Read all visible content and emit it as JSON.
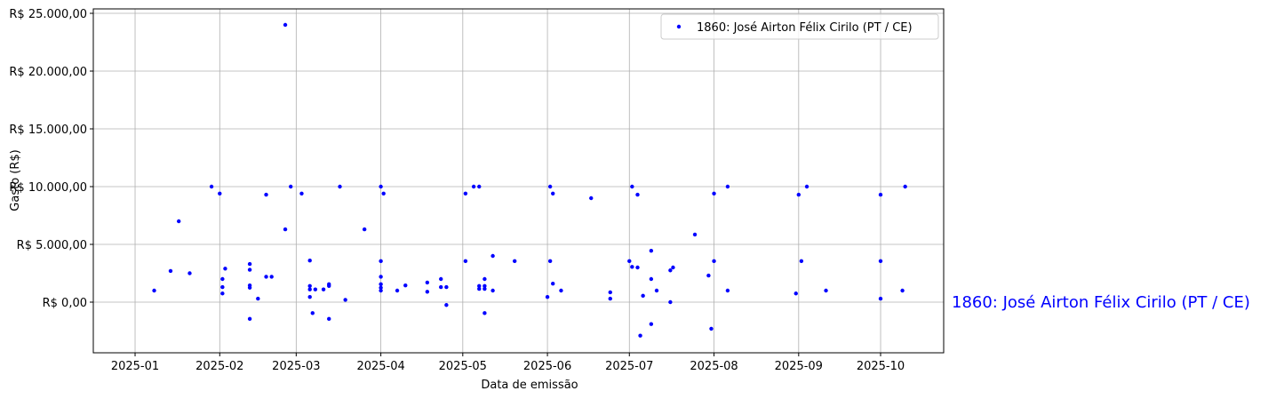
{
  "chart_data": {
    "type": "scatter",
    "x_label": "Data de emissão",
    "y_label": "Gasto (R$)",
    "annotation": "1860: José Airton Félix Cirilo (PT / CE)",
    "legend": "upper right",
    "grid": true,
    "xlim": [
      -15.3,
      296.1
    ],
    "xticks": [
      {
        "value": 0,
        "label": "2025-01"
      },
      {
        "value": 31,
        "label": "2025-02"
      },
      {
        "value": 59,
        "label": "2025-03"
      },
      {
        "value": 90,
        "label": "2025-04"
      },
      {
        "value": 120,
        "label": "2025-05"
      },
      {
        "value": 151,
        "label": "2025-06"
      },
      {
        "value": 181,
        "label": "2025-07"
      },
      {
        "value": 212,
        "label": "2025-08"
      },
      {
        "value": 243,
        "label": "2025-09"
      },
      {
        "value": 273,
        "label": "2025-10"
      }
    ],
    "ylim": [
      -4385,
      25385
    ],
    "yticks": [
      {
        "value": 0,
        "label": "R$ 0,00"
      },
      {
        "value": 5000,
        "label": "R$ 5.000,00"
      },
      {
        "value": 10000,
        "label": "R$ 10.000,00"
      },
      {
        "value": 15000,
        "label": "R$ 15.000,00"
      },
      {
        "value": 20000,
        "label": "R$ 20.000,00"
      },
      {
        "value": 25000,
        "label": "R$ 25.000,00"
      }
    ],
    "series": [
      {
        "name": "1860: José Airton Félix Cirilo (PT / CE)",
        "color": "#0000ff",
        "x": [
          7,
          13,
          16,
          20,
          28,
          31,
          32,
          32,
          32,
          33,
          42,
          42,
          42,
          42,
          42,
          45,
          48,
          48,
          50,
          55,
          55,
          57,
          61,
          64,
          64,
          64,
          64,
          65,
          66,
          69,
          71,
          71,
          71,
          75,
          77,
          84,
          90,
          90,
          90,
          90,
          90,
          90,
          91,
          96,
          99,
          107,
          107,
          112,
          112,
          114,
          114,
          121,
          121,
          124,
          126,
          126,
          126,
          128,
          128,
          128,
          128,
          131,
          131,
          139,
          151,
          152,
          152,
          153,
          153,
          156,
          167,
          174,
          174,
          181,
          182,
          182,
          184,
          184,
          185,
          186,
          189,
          189,
          189,
          191,
          196,
          196,
          197,
          205,
          210,
          211,
          212,
          212,
          217,
          217,
          242,
          243,
          244,
          246,
          253,
          273,
          273,
          273,
          281,
          282
        ],
        "values": [
          1000,
          2700,
          7000,
          2500,
          10000,
          9400,
          2000,
          1300,
          750,
          2900,
          3300,
          2800,
          1450,
          1250,
          -1450,
          300,
          9300,
          2200,
          2200,
          24000,
          6300,
          10000,
          9400,
          1400,
          3600,
          1100,
          450,
          -950,
          1100,
          1100,
          1550,
          1400,
          -1450,
          10000,
          200,
          6300,
          10000,
          3550,
          2200,
          1550,
          1250,
          1000,
          9400,
          1000,
          1450,
          1700,
          900,
          2000,
          1300,
          1300,
          -250,
          3550,
          9400,
          10000,
          10000,
          1400,
          1150,
          2000,
          1400,
          1150,
          -950,
          4000,
          1000,
          3550,
          450,
          10000,
          3550,
          1600,
          9400,
          1000,
          9000,
          850,
          300,
          3550,
          10000,
          3050,
          9300,
          3000,
          -2900,
          550,
          4450,
          2000,
          -1900,
          1000,
          0,
          2750,
          3000,
          5850,
          2300,
          -2300,
          9400,
          3550,
          10000,
          1000,
          750,
          9300,
          3550,
          10000,
          1000,
          9300,
          3550,
          300,
          1000,
          10000
        ]
      }
    ]
  }
}
